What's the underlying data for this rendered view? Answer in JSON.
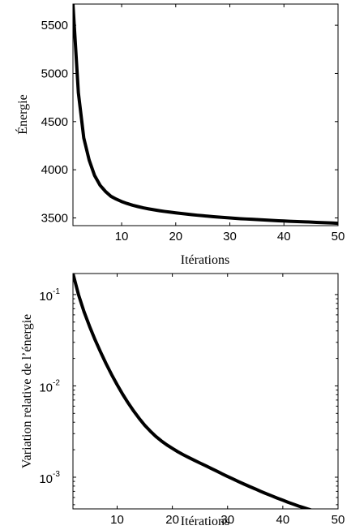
{
  "chart_data": [
    {
      "type": "line",
      "xlabel": "Itérations",
      "ylabel": "Énergie",
      "xlim": [
        1,
        50
      ],
      "ylim": [
        3420,
        5720
      ],
      "xticks": [
        10,
        20,
        30,
        40,
        50
      ],
      "yticks": [
        3500,
        4000,
        4500,
        5000,
        5500
      ],
      "xtick_labels": [
        "10",
        "20",
        "30",
        "40",
        "50"
      ],
      "ytick_labels": [
        "3500",
        "4000",
        "4500",
        "5000",
        "5500"
      ],
      "grid": false,
      "series": [
        {
          "x": [
            1,
            2,
            3,
            4,
            5,
            6,
            7,
            8,
            9,
            10,
            11,
            12,
            13,
            14,
            15,
            16,
            17,
            18,
            19,
            20,
            21,
            22,
            23,
            24,
            25,
            26,
            27,
            28,
            29,
            30,
            31,
            32,
            33,
            34,
            35,
            36,
            37,
            38,
            39,
            40,
            41,
            42,
            43,
            44,
            45,
            46,
            47,
            48,
            49,
            50
          ],
          "values": [
            5720,
            4800,
            4330,
            4100,
            3940,
            3840,
            3775,
            3725,
            3695,
            3670,
            3650,
            3632,
            3618,
            3605,
            3594,
            3584,
            3575,
            3567,
            3560,
            3553,
            3546,
            3540,
            3534,
            3528,
            3523,
            3518,
            3513,
            3508,
            3504,
            3500,
            3496,
            3492,
            3489,
            3486,
            3483,
            3480,
            3477,
            3474,
            3471,
            3468,
            3465,
            3463,
            3461,
            3459,
            3457,
            3454,
            3452,
            3450,
            3447,
            3444
          ]
        }
      ]
    },
    {
      "type": "line",
      "xlabel": "Itérations",
      "ylabel": "Variation relative de l’énergie",
      "yscale": "log",
      "xlim": [
        2,
        50
      ],
      "ylim": [
        0.00045,
        0.17
      ],
      "xticks": [
        10,
        20,
        30,
        40,
        50
      ],
      "xtick_labels": [
        "10",
        "20",
        "30",
        "40",
        "50"
      ],
      "yticks": [
        0.1,
        0.01,
        0.001
      ],
      "ytick_labels": [
        {
          "base": "10",
          "exp": "-1"
        },
        {
          "base": "10",
          "exp": "-2"
        },
        {
          "base": "10",
          "exp": "-3"
        }
      ],
      "grid": false,
      "series": [
        {
          "x": [
            2,
            3,
            4,
            5,
            6,
            7,
            8,
            9,
            10,
            11,
            12,
            13,
            14,
            15,
            16,
            17,
            18,
            19,
            20,
            21,
            22,
            23,
            24,
            25,
            26,
            27,
            28,
            29,
            30,
            31,
            32,
            33,
            34,
            35,
            36,
            37,
            38,
            39,
            40,
            41,
            42,
            43,
            44,
            45,
            46,
            47,
            48,
            49,
            50
          ],
          "values": [
            0.17,
            0.1,
            0.065,
            0.045,
            0.032,
            0.0235,
            0.0175,
            0.0133,
            0.0103,
            0.0081,
            0.0065,
            0.0053,
            0.0044,
            0.0037,
            0.0032,
            0.0028,
            0.0025,
            0.00226,
            0.00207,
            0.0019,
            0.00176,
            0.00164,
            0.00153,
            0.00143,
            0.00134,
            0.00125,
            0.00117,
            0.00109,
            0.00102,
            0.000955,
            0.000895,
            0.00084,
            0.00079,
            0.000745,
            0.0007,
            0.00066,
            0.000625,
            0.00059,
            0.00056,
            0.00053,
            0.000505,
            0.00048,
            0.00046,
            0.00044,
            0.000422,
            0.000405,
            0.00039,
            0.000375,
            0.00036
          ]
        }
      ]
    }
  ]
}
